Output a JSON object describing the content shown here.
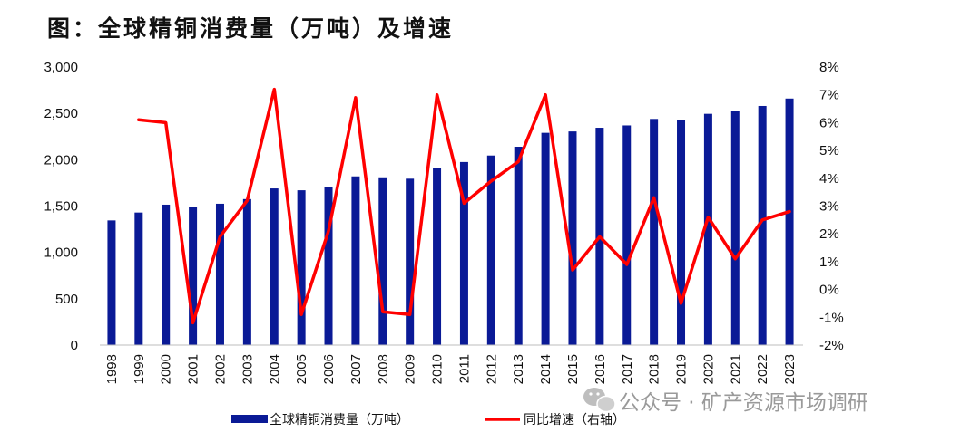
{
  "chart_title": "图：全球精铜消费量（万吨）及增速",
  "watermark": "公众号 · 矿产资源市场调研",
  "chart_data": {
    "type": "bar+line",
    "categories": [
      "1998",
      "1999",
      "2000",
      "2001",
      "2002",
      "2003",
      "2004",
      "2005",
      "2006",
      "2007",
      "2008",
      "2009",
      "2010",
      "2011",
      "2012",
      "2013",
      "2014",
      "2015",
      "2016",
      "2017",
      "2018",
      "2019",
      "2020",
      "2021",
      "2022",
      "2023"
    ],
    "series": [
      {
        "name": "全球精铜消费量（万吨）",
        "type": "bar",
        "axis": "left",
        "color": "#0a1a96",
        "values": [
          1345,
          1430,
          1515,
          1495,
          1525,
          1575,
          1690,
          1670,
          1705,
          1820,
          1810,
          1795,
          1915,
          1975,
          2045,
          2140,
          2290,
          2305,
          2345,
          2370,
          2440,
          2430,
          2495,
          2525,
          2580,
          2660
        ]
      },
      {
        "name": "同比增速（右轴）",
        "type": "line",
        "axis": "right",
        "color": "#ff0000",
        "values": [
          null,
          6.1,
          6.0,
          -1.2,
          1.9,
          3.2,
          7.2,
          -0.9,
          2.1,
          6.9,
          -0.8,
          -0.9,
          7.0,
          3.1,
          3.9,
          4.6,
          7.0,
          0.7,
          1.9,
          0.9,
          3.3,
          -0.5,
          2.6,
          1.1,
          2.5,
          2.8
        ]
      }
    ],
    "y_left": {
      "min": 0,
      "max": 3000,
      "step": 500,
      "tick_labels": [
        "0",
        "500",
        "1,000",
        "1,500",
        "2,000",
        "2,500",
        "3,000"
      ]
    },
    "y_right": {
      "min": -2,
      "max": 8,
      "step": 1,
      "tick_labels": [
        "-2%",
        "-1%",
        "0%",
        "1%",
        "2%",
        "3%",
        "4%",
        "5%",
        "6%",
        "7%",
        "8%"
      ]
    },
    "grid": false,
    "legend": [
      "全球精铜消费量（万吨）",
      "同比增速（右轴）"
    ],
    "legend_position": "bottom"
  }
}
